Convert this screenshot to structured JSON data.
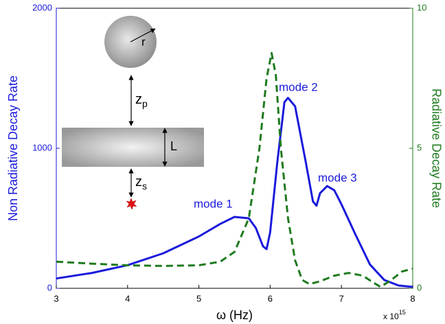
{
  "chart_data": {
    "type": "line",
    "xlabel": "ω (Hz)",
    "x_scale": {
      "base": "x 10",
      "exponent": "15"
    },
    "ylabel": "Non Radiative Decay Rate",
    "y2label": "Radiative Decay Rate",
    "xlim": [
      3,
      8
    ],
    "xticks": [
      3,
      4,
      5,
      6,
      7,
      8
    ],
    "ylim": [
      0,
      2000
    ],
    "yticks": [
      0,
      1000,
      2000
    ],
    "y2lim": [
      0,
      10
    ],
    "y2ticks": [
      0,
      5,
      10
    ],
    "annotations": [
      "mode 1",
      "mode 2",
      "mode 3"
    ],
    "series": [
      {
        "name": "Non Radiative Decay Rate",
        "color": "#1a1adb",
        "dash": "solid",
        "x": [
          3,
          3.5,
          4,
          4.5,
          5,
          5.3,
          5.5,
          5.7,
          5.8,
          5.9,
          5.95,
          6.0,
          6.1,
          6.2,
          6.25,
          6.35,
          6.5,
          6.6,
          6.65,
          6.7,
          6.8,
          6.9,
          7.0,
          7.2,
          7.4,
          7.6,
          7.8,
          8
        ],
        "values": [
          70,
          110,
          165,
          250,
          370,
          460,
          510,
          500,
          430,
          300,
          280,
          400,
          900,
          1330,
          1360,
          1300,
          900,
          620,
          590,
          680,
          730,
          700,
          600,
          380,
          170,
          60,
          20,
          10
        ]
      },
      {
        "name": "Radiative Decay Rate",
        "color": "#1e7a1e",
        "dash": "dashed",
        "axis": "y2",
        "x": [
          3,
          3.5,
          4,
          4.5,
          5,
          5.3,
          5.5,
          5.7,
          5.85,
          5.95,
          6.02,
          6.08,
          6.15,
          6.25,
          6.35,
          6.45,
          6.55,
          6.7,
          6.9,
          7.1,
          7.3,
          7.45,
          7.55,
          7.7,
          7.85,
          8
        ],
        "values": [
          0.95,
          0.88,
          0.82,
          0.8,
          0.82,
          0.95,
          1.3,
          2.5,
          5,
          7.5,
          8.4,
          7.6,
          5,
          2.5,
          1,
          0.3,
          0.15,
          0.25,
          0.45,
          0.55,
          0.45,
          0.2,
          0.05,
          0.3,
          0.6,
          0.7
        ]
      }
    ]
  },
  "inset_labels": {
    "radius": "r",
    "zp": {
      "base": "z",
      "sub": "p"
    },
    "thickness": "L",
    "zs": {
      "base": "z",
      "sub": "s"
    }
  }
}
